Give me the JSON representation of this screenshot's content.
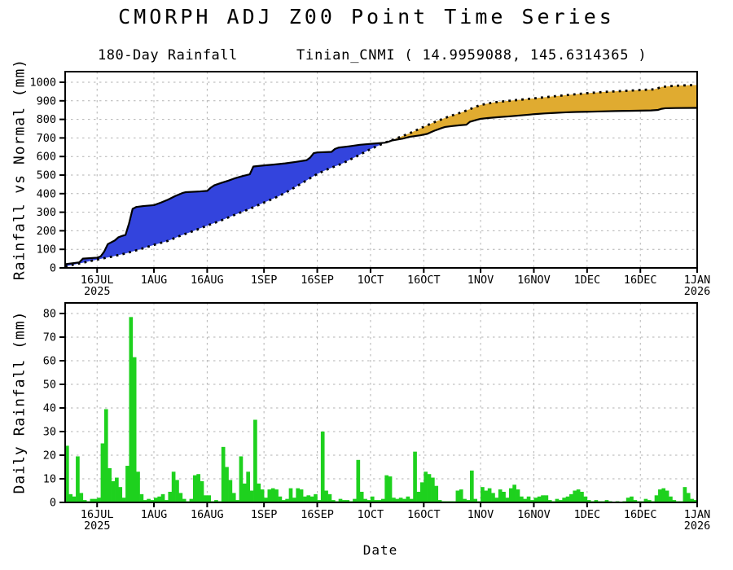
{
  "header": {
    "title": "CMORPH ADJ Z00 Point Time Series",
    "subtitle_left": "180-Day Rainfall",
    "subtitle_right": "Tinian_CNMI ( 14.9959088, 145.6314365 )"
  },
  "colors": {
    "above_normal_fill": "#3344dd",
    "below_normal_fill": "#e0ab30",
    "bar_green": "#1ed11e",
    "grid_gray": "#b2b2b2",
    "axis_black": "#000000"
  },
  "chart_data": [
    {
      "type": "area",
      "title": "180-Day Rainfall",
      "ylabel": "Rainfall vs Normal (mm)",
      "ylim": [
        0,
        1060
      ],
      "yticks": [
        0,
        100,
        200,
        300,
        400,
        500,
        600,
        700,
        800,
        900,
        1000
      ],
      "x_domain_days": 178,
      "xticks": [
        {
          "day": 9,
          "label": "16JUL",
          "year": "2025"
        },
        {
          "day": 25,
          "label": "1AUG"
        },
        {
          "day": 40,
          "label": "16AUG"
        },
        {
          "day": 56,
          "label": "1SEP"
        },
        {
          "day": 71,
          "label": "16SEP"
        },
        {
          "day": 86,
          "label": "1OCT"
        },
        {
          "day": 101,
          "label": "16OCT"
        },
        {
          "day": 117,
          "label": "1NOV"
        },
        {
          "day": 132,
          "label": "16NOV"
        },
        {
          "day": 147,
          "label": "1DEC"
        },
        {
          "day": 162,
          "label": "16DEC"
        },
        {
          "day": 178,
          "label": "1JAN",
          "year": "2026"
        }
      ],
      "grid": true,
      "legend": "none",
      "cross_day": 90,
      "series": [
        {
          "name": "observed_plus_projection",
          "style": "solid",
          "points": [
            [
              0,
              20
            ],
            [
              2,
              25
            ],
            [
              4,
              30
            ],
            [
              5,
              50
            ],
            [
              9,
              55
            ],
            [
              10,
              62
            ],
            [
              11,
              88
            ],
            [
              12,
              128
            ],
            [
              14,
              148
            ],
            [
              15,
              165
            ],
            [
              16,
              172
            ],
            [
              17,
              178
            ],
            [
              18,
              240
            ],
            [
              19,
              318
            ],
            [
              20,
              328
            ],
            [
              22,
              333
            ],
            [
              25,
              338
            ],
            [
              27,
              352
            ],
            [
              29,
              368
            ],
            [
              31,
              387
            ],
            [
              33,
              403
            ],
            [
              34,
              408
            ],
            [
              38,
              412
            ],
            [
              40,
              415
            ],
            [
              41,
              432
            ],
            [
              42,
              445
            ],
            [
              44,
              458
            ],
            [
              46,
              470
            ],
            [
              48,
              484
            ],
            [
              50,
              495
            ],
            [
              52,
              504
            ],
            [
              53,
              546
            ],
            [
              56,
              552
            ],
            [
              59,
              557
            ],
            [
              62,
              563
            ],
            [
              65,
              571
            ],
            [
              68,
              580
            ],
            [
              69,
              594
            ],
            [
              70,
              618
            ],
            [
              71,
              622
            ],
            [
              75,
              625
            ],
            [
              76,
              641
            ],
            [
              77,
              648
            ],
            [
              80,
              655
            ],
            [
              83,
              663
            ],
            [
              86,
              668
            ],
            [
              88,
              671
            ],
            [
              90,
              674
            ],
            [
              91,
              679
            ],
            [
              92,
              686
            ],
            [
              95,
              696
            ],
            [
              97,
              706
            ],
            [
              100,
              714
            ],
            [
              102,
              722
            ],
            [
              103,
              731
            ],
            [
              104,
              739
            ],
            [
              105,
              746
            ],
            [
              106,
              753
            ],
            [
              107,
              759
            ],
            [
              109,
              764
            ],
            [
              111,
              768
            ],
            [
              113,
              771
            ],
            [
              114,
              787
            ],
            [
              116,
              798
            ],
            [
              117,
              803
            ],
            [
              119,
              807
            ],
            [
              122,
              812
            ],
            [
              125,
              816
            ],
            [
              128,
              821
            ],
            [
              131,
              826
            ],
            [
              132,
              828
            ],
            [
              135,
              832
            ],
            [
              138,
              835
            ],
            [
              141,
              838
            ],
            [
              144,
              840
            ],
            [
              147,
              841
            ],
            [
              151,
              843
            ],
            [
              155,
              845
            ],
            [
              159,
              846
            ],
            [
              162,
              847
            ],
            [
              165,
              848
            ],
            [
              167,
              851
            ],
            [
              168,
              857
            ],
            [
              169,
              860
            ],
            [
              172,
              861
            ],
            [
              178,
              862
            ]
          ]
        },
        {
          "name": "normal_climatology",
          "style": "dotted",
          "points": [
            [
              0,
              8
            ],
            [
              5,
              28
            ],
            [
              9,
              45
            ],
            [
              13,
              60
            ],
            [
              17,
              78
            ],
            [
              21,
              100
            ],
            [
              25,
              124
            ],
            [
              29,
              146
            ],
            [
              32,
              170
            ],
            [
              36,
              198
            ],
            [
              40,
              228
            ],
            [
              44,
              256
            ],
            [
              48,
              288
            ],
            [
              52,
              318
            ],
            [
              56,
              352
            ],
            [
              60,
              385
            ],
            [
              63,
              415
            ],
            [
              67,
              460
            ],
            [
              71,
              506
            ],
            [
              74,
              532
            ],
            [
              78,
              562
            ],
            [
              82,
              600
            ],
            [
              86,
              640
            ],
            [
              90,
              674
            ],
            [
              93,
              695
            ],
            [
              97,
              725
            ],
            [
              101,
              760
            ],
            [
              104,
              785
            ],
            [
              108,
              815
            ],
            [
              112,
              840
            ],
            [
              117,
              878
            ],
            [
              121,
              892
            ],
            [
              126,
              902
            ],
            [
              132,
              913
            ],
            [
              138,
              925
            ],
            [
              143,
              934
            ],
            [
              147,
              941
            ],
            [
              152,
              948
            ],
            [
              157,
              953
            ],
            [
              162,
              958
            ],
            [
              166,
              962
            ],
            [
              167,
              968
            ],
            [
              168,
              975
            ],
            [
              171,
              980
            ],
            [
              174,
              983
            ],
            [
              178,
              985
            ]
          ]
        }
      ]
    },
    {
      "type": "bar",
      "ylabel": "Daily Rainfall (mm)",
      "xlabel": "Date",
      "ylim": [
        0,
        85
      ],
      "yticks": [
        0,
        10,
        20,
        30,
        40,
        50,
        60,
        70,
        80
      ],
      "x_domain_days": 178,
      "xticks": [
        {
          "day": 9,
          "label": "16JUL",
          "year": "2025"
        },
        {
          "day": 25,
          "label": "1AUG"
        },
        {
          "day": 40,
          "label": "16AUG"
        },
        {
          "day": 56,
          "label": "1SEP"
        },
        {
          "day": 71,
          "label": "16SEP"
        },
        {
          "day": 86,
          "label": "1OCT"
        },
        {
          "day": 101,
          "label": "16OCT"
        },
        {
          "day": 117,
          "label": "1NOV"
        },
        {
          "day": 132,
          "label": "16NOV"
        },
        {
          "day": 147,
          "label": "1DEC"
        },
        {
          "day": 162,
          "label": "16DEC"
        },
        {
          "day": 178,
          "label": "1JAN",
          "year": "2026"
        }
      ],
      "grid": true,
      "values_mm": [
        24,
        3.5,
        2.5,
        19.5,
        4,
        1,
        0.5,
        1.5,
        1.5,
        2,
        25,
        39.5,
        14.5,
        9,
        10.5,
        6.5,
        2,
        15.5,
        78.5,
        61.5,
        13,
        3.5,
        1,
        1.5,
        1,
        2,
        2.5,
        3.5,
        1,
        4.5,
        13,
        9.5,
        4,
        1.5,
        0.5,
        1.5,
        11.5,
        12,
        9,
        3,
        3,
        0.5,
        1,
        0.5,
        23.5,
        15,
        9.5,
        4,
        1,
        19.5,
        8,
        13,
        5,
        35,
        8,
        5.5,
        2,
        5.5,
        6,
        5.5,
        2.5,
        1,
        1.5,
        6,
        2,
        6,
        5.5,
        2.5,
        3,
        2.5,
        3.5,
        1,
        30,
        5,
        3.5,
        1,
        0.5,
        1.5,
        1,
        1,
        0.5,
        1.5,
        18,
        4.5,
        1.5,
        1,
        2.5,
        1,
        1,
        1.5,
        11.5,
        11,
        2,
        1.5,
        2,
        1.5,
        2.5,
        1.5,
        21.5,
        4.5,
        8.5,
        13,
        12,
        10.5,
        7,
        1,
        0.5,
        0.5,
        0.5,
        0.5,
        5,
        5.5,
        1.5,
        1,
        13.5,
        1.5,
        0.5,
        6.5,
        5,
        6,
        4,
        2,
        5.5,
        4.5,
        2,
        6,
        7.5,
        5.5,
        2.5,
        1.5,
        2.5,
        1,
        2,
        2.5,
        3,
        3,
        1,
        0.5,
        1.5,
        1,
        2,
        2.5,
        3.5,
        5,
        5.5,
        4.5,
        2.5,
        1,
        0.5,
        1,
        0.5,
        0.5,
        1,
        0.5,
        0.3,
        0.5,
        0.3,
        0.5,
        2,
        2.5,
        1,
        0.5,
        0.5,
        1.5,
        1,
        0.5,
        3,
        5.5,
        6,
        5,
        2.5,
        1,
        0.5,
        0.5,
        6.5,
        4,
        1.5,
        1,
        0.5
      ]
    }
  ]
}
